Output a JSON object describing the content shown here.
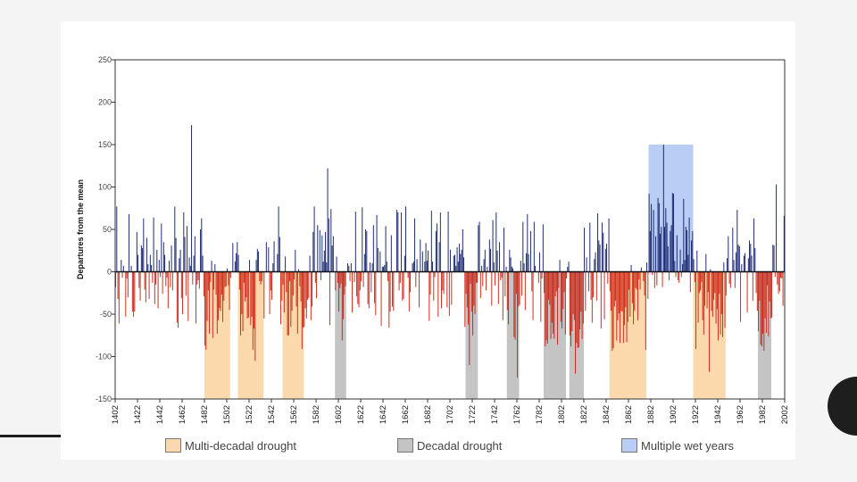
{
  "chart_data": {
    "type": "bar",
    "ylabel": "Departures from the mean",
    "xlabel": "",
    "ylim": [
      -150,
      250
    ],
    "xlim": [
      1402,
      2002
    ],
    "y_ticks": [
      "250",
      "200",
      "150",
      "100",
      "50",
      "0",
      "-50",
      "-100",
      "-150"
    ],
    "x_ticks": [
      "1402",
      "1422",
      "1442",
      "1462",
      "1482",
      "1502",
      "1522",
      "1542",
      "1562",
      "1582",
      "1602",
      "1622",
      "1642",
      "1662",
      "1682",
      "1702",
      "1722",
      "1742",
      "1762",
      "1782",
      "1802",
      "1822",
      "1842",
      "1862",
      "1882",
      "1902",
      "1922",
      "1942",
      "1962",
      "1982",
      "2002"
    ],
    "shaded_periods": [
      {
        "type": "multi-decadal",
        "start": 1482,
        "end": 1505
      },
      {
        "type": "multi-decadal",
        "start": 1512,
        "end": 1535
      },
      {
        "type": "multi-decadal",
        "start": 1552,
        "end": 1571
      },
      {
        "type": "decadal",
        "start": 1599,
        "end": 1609
      },
      {
        "type": "decadal",
        "start": 1716,
        "end": 1727
      },
      {
        "type": "decadal",
        "start": 1753,
        "end": 1764
      },
      {
        "type": "decadal",
        "start": 1786,
        "end": 1806
      },
      {
        "type": "decadal",
        "start": 1809,
        "end": 1822
      },
      {
        "type": "multi-decadal",
        "start": 1845,
        "end": 1878
      },
      {
        "type": "wet",
        "start": 1880,
        "end": 1920
      },
      {
        "type": "multi-decadal",
        "start": 1920,
        "end": 1949
      },
      {
        "type": "decadal",
        "start": 1978,
        "end": 1990
      }
    ],
    "notable_values": [
      {
        "year": 1470,
        "value": 173
      },
      {
        "year": 1592,
        "value": 122
      },
      {
        "year": 1893,
        "value": 150
      },
      {
        "year": 1994,
        "value": 103
      },
      {
        "year": 1527,
        "value": -105
      },
      {
        "year": 1719,
        "value": -110
      },
      {
        "year": 1762,
        "value": -125
      },
      {
        "year": 1814,
        "value": -120
      },
      {
        "year": 1934,
        "value": -118
      }
    ],
    "series": [
      {
        "name": "Annual departures from the mean",
        "values": []
      }
    ]
  },
  "legend": {
    "multi_decadal": {
      "label": "Multi-decadal drought",
      "color": "#fbd9ad"
    },
    "decadal": {
      "label": "Decadal drought",
      "color": "#c4c4c4"
    },
    "wet": {
      "label": "Multiple wet years",
      "color": "#b9cdf5"
    }
  },
  "colors": {
    "positive": "#12206a",
    "negative": "#cc2212"
  }
}
